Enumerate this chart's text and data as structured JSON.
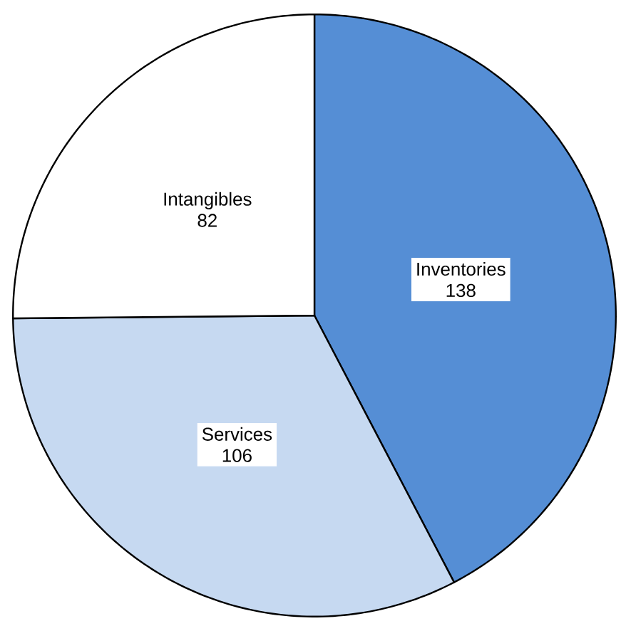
{
  "chart_data": {
    "type": "pie",
    "categories": [
      "Inventories",
      "Services",
      "Intangibles"
    ],
    "values": [
      138,
      106,
      82
    ],
    "colors": [
      "#558ed5",
      "#c6d9f1",
      "#ffffff"
    ],
    "data_labels": true
  }
}
